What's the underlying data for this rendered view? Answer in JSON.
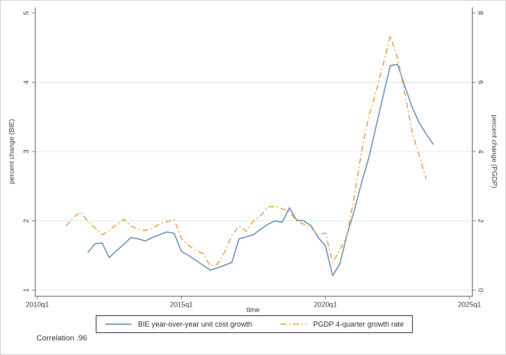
{
  "chart_data": {
    "type": "line",
    "title": "",
    "note": "Correlation .96",
    "grid": true,
    "legend_position": "bottom",
    "colors": {
      "bie_line": "#6b91b4",
      "pgdp_line": "#eca04c",
      "gridline": "#ddeeea",
      "axis_line": "#8a8a8a",
      "text": "#3a3a3a"
    },
    "axes": {
      "x": {
        "title": "time",
        "range": [
          2010,
          2025
        ],
        "ticks": [
          {
            "v": 2010,
            "label": "2010q1"
          },
          {
            "v": 2015,
            "label": "2015q1"
          },
          {
            "v": 2020,
            "label": "2020q1"
          },
          {
            "v": 2025,
            "label": "2025q1"
          }
        ]
      },
      "left": {
        "title": "percent change (BIE)",
        "range": [
          1,
          5
        ],
        "ticks": [
          {
            "v": 1,
            "label": "1"
          },
          {
            "v": 2,
            "label": "2"
          },
          {
            "v": 3,
            "label": "3"
          },
          {
            "v": 4,
            "label": "4"
          },
          {
            "v": 5,
            "label": "5"
          }
        ],
        "grid_values": [
          1,
          2,
          3,
          4
        ]
      },
      "right": {
        "title": "percent change (PGDP)",
        "range": [
          0,
          8
        ],
        "ticks": [
          {
            "v": 0,
            "label": "0"
          },
          {
            "v": 2,
            "label": "2"
          },
          {
            "v": 4,
            "label": "4"
          },
          {
            "v": 6,
            "label": "6"
          },
          {
            "v": 8,
            "label": "8"
          }
        ]
      }
    },
    "series": [
      {
        "name": "BIE year-over-year unit cost growth",
        "axis": "left",
        "style": "solid",
        "points": [
          [
            2011.75,
            1.54
          ],
          [
            2012.0,
            1.67
          ],
          [
            2012.25,
            1.68
          ],
          [
            2012.5,
            1.47
          ],
          [
            2012.75,
            1.57
          ],
          [
            2013.0,
            1.66
          ],
          [
            2013.25,
            1.76
          ],
          [
            2013.5,
            1.74
          ],
          [
            2013.75,
            1.71
          ],
          [
            2014.0,
            1.76
          ],
          [
            2014.25,
            1.8
          ],
          [
            2014.5,
            1.84
          ],
          [
            2014.75,
            1.82
          ],
          [
            2015.0,
            1.56
          ],
          [
            2015.25,
            1.5
          ],
          [
            2015.5,
            1.43
          ],
          [
            2015.75,
            1.36
          ],
          [
            2016.0,
            1.29
          ],
          [
            2016.25,
            1.32
          ],
          [
            2016.5,
            1.36
          ],
          [
            2016.75,
            1.4
          ],
          [
            2017.0,
            1.74
          ],
          [
            2017.25,
            1.77
          ],
          [
            2017.5,
            1.8
          ],
          [
            2017.75,
            1.88
          ],
          [
            2018.0,
            1.95
          ],
          [
            2018.25,
            2.0
          ],
          [
            2018.5,
            1.98
          ],
          [
            2018.75,
            2.19
          ],
          [
            2019.0,
            2.01
          ],
          [
            2019.25,
            2.0
          ],
          [
            2019.5,
            1.93
          ],
          [
            2019.75,
            1.76
          ],
          [
            2020.0,
            1.64
          ],
          [
            2020.25,
            1.21
          ],
          [
            2020.5,
            1.38
          ],
          [
            2020.75,
            1.8
          ],
          [
            2021.0,
            2.15
          ],
          [
            2021.25,
            2.55
          ],
          [
            2021.5,
            2.9
          ],
          [
            2021.75,
            3.35
          ],
          [
            2022.0,
            3.8
          ],
          [
            2022.25,
            4.24
          ],
          [
            2022.5,
            4.26
          ],
          [
            2022.75,
            3.95
          ],
          [
            2023.0,
            3.65
          ],
          [
            2023.25,
            3.42
          ],
          [
            2023.5,
            3.25
          ],
          [
            2023.75,
            3.1
          ]
        ]
      },
      {
        "name": "PGDP 4-quarter growth rate",
        "axis": "right",
        "style": "dash-dot",
        "points": [
          [
            2011.0,
            1.85
          ],
          [
            2011.25,
            2.1
          ],
          [
            2011.5,
            2.25
          ],
          [
            2011.75,
            2.0
          ],
          [
            2012.0,
            1.8
          ],
          [
            2012.25,
            1.6
          ],
          [
            2012.5,
            1.72
          ],
          [
            2012.75,
            1.9
          ],
          [
            2013.0,
            2.05
          ],
          [
            2013.25,
            1.85
          ],
          [
            2013.5,
            1.76
          ],
          [
            2013.75,
            1.72
          ],
          [
            2014.0,
            1.78
          ],
          [
            2014.25,
            1.92
          ],
          [
            2014.5,
            1.98
          ],
          [
            2014.75,
            2.03
          ],
          [
            2015.0,
            1.49
          ],
          [
            2015.25,
            1.29
          ],
          [
            2015.5,
            1.15
          ],
          [
            2015.75,
            1.06
          ],
          [
            2016.0,
            0.7
          ],
          [
            2016.25,
            0.75
          ],
          [
            2016.5,
            1.1
          ],
          [
            2016.75,
            1.58
          ],
          [
            2017.0,
            1.85
          ],
          [
            2017.25,
            1.7
          ],
          [
            2017.5,
            2.0
          ],
          [
            2017.75,
            2.15
          ],
          [
            2018.0,
            2.4
          ],
          [
            2018.25,
            2.42
          ],
          [
            2018.5,
            2.35
          ],
          [
            2018.75,
            2.27
          ],
          [
            2019.0,
            2.0
          ],
          [
            2019.25,
            1.9
          ],
          [
            2019.5,
            1.8
          ],
          [
            2019.75,
            1.6
          ],
          [
            2020.0,
            1.65
          ],
          [
            2020.25,
            0.8
          ],
          [
            2020.5,
            1.15
          ],
          [
            2020.75,
            1.6
          ],
          [
            2021.0,
            2.7
          ],
          [
            2021.25,
            4.0
          ],
          [
            2021.5,
            5.0
          ],
          [
            2021.75,
            5.7
          ],
          [
            2022.0,
            6.5
          ],
          [
            2022.25,
            7.35
          ],
          [
            2022.5,
            6.7
          ],
          [
            2022.75,
            5.7
          ],
          [
            2023.0,
            4.6
          ],
          [
            2023.25,
            3.9
          ],
          [
            2023.5,
            3.2
          ]
        ]
      }
    ]
  }
}
